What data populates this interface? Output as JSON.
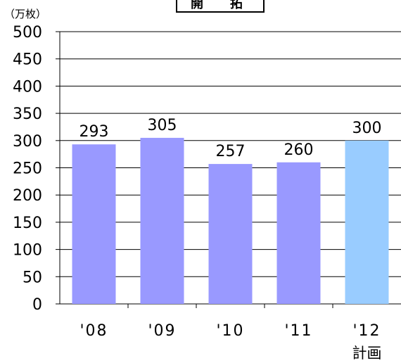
{
  "chart_data": {
    "type": "bar",
    "title": "開　拓",
    "unit_label": "（万枚）",
    "categories": [
      "'08",
      "'09",
      "'10",
      "'11",
      "'12"
    ],
    "category_sublabels": [
      "",
      "",
      "",
      "",
      "計画"
    ],
    "values": [
      293,
      305,
      257,
      260,
      300
    ],
    "data_labels": [
      "293",
      "305",
      "257",
      "260",
      "300"
    ],
    "ylim": [
      0,
      500
    ],
    "yticks": [
      0,
      50,
      100,
      150,
      200,
      250,
      300,
      350,
      400,
      450,
      500
    ],
    "grid": true,
    "colors": {
      "actual": "#9999ff",
      "plan": "#99ccff",
      "grid": "#000000"
    },
    "plan_index": 4
  }
}
